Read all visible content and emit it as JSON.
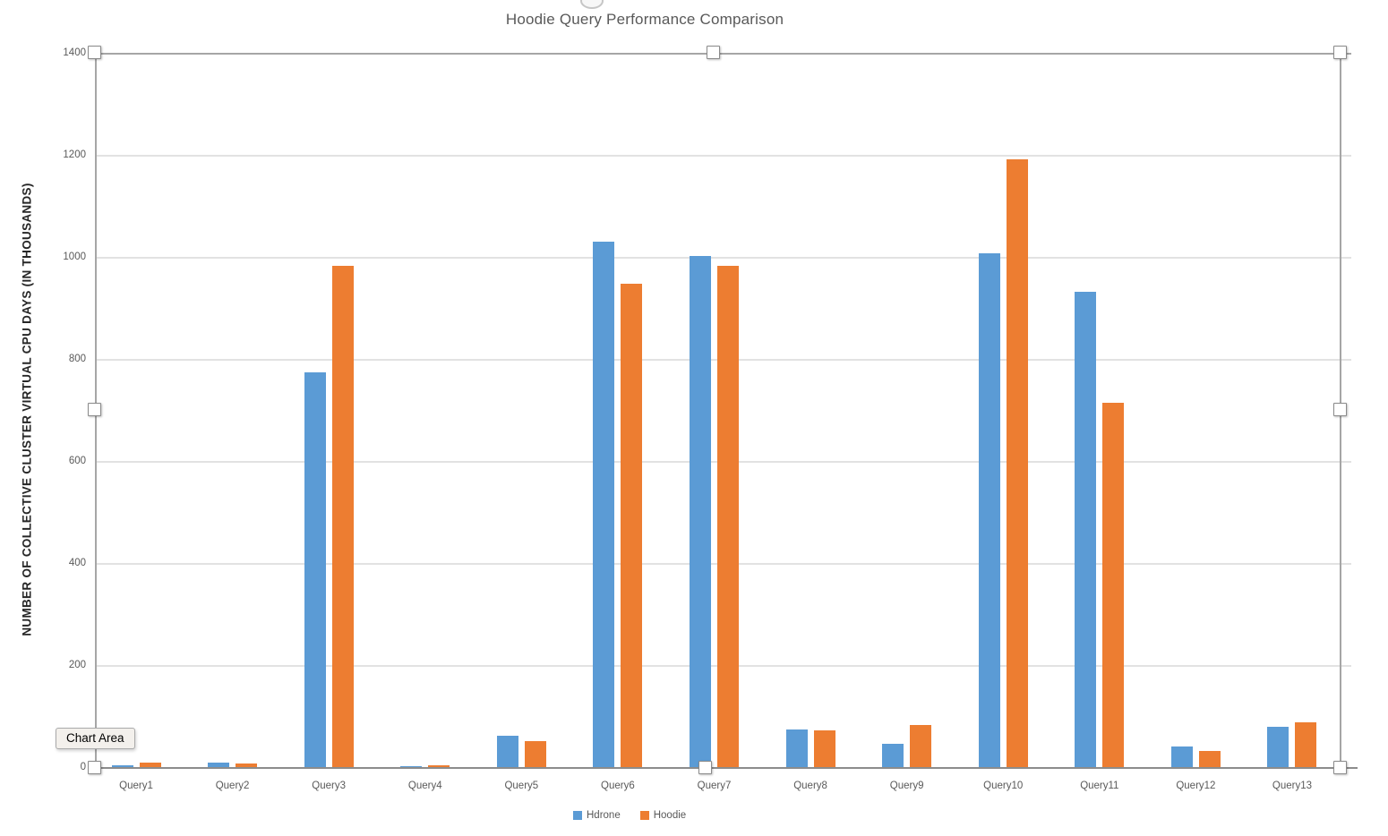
{
  "chart_data": {
    "type": "bar",
    "title": "Hoodie Query Performance Comparison",
    "ylabel": "NUMBER OF COLLECTIVE CLUSTER VIRTUAL CPU DAYS (IN THOUSANDS)",
    "xlabel": "",
    "categories": [
      "Query1",
      "Query2",
      "Query3",
      "Query4",
      "Query5",
      "Query6",
      "Query7",
      "Query8",
      "Query9",
      "Query10",
      "Query11",
      "Query12",
      "Query13"
    ],
    "series": [
      {
        "name": "Hdrone",
        "color": "#5B9BD5",
        "values": [
          5,
          10,
          775,
          4,
          64,
          1031,
          1004,
          75,
          48,
          1008,
          934,
          42,
          81
        ]
      },
      {
        "name": "Hoodie",
        "color": "#ED7D31",
        "values": [
          10,
          9,
          985,
          5,
          52,
          949,
          984,
          74,
          84,
          1193,
          716,
          33,
          90
        ]
      }
    ],
    "ylim": [
      0,
      1400
    ],
    "ytick_step": 200,
    "grid": "horizontal",
    "legend_position": "bottom"
  },
  "selection": {
    "tooltip": "Chart Area"
  },
  "colors": {
    "hdrone": "#5B9BD5",
    "hoodie": "#ED7D31",
    "gridline": "#E2E2E2",
    "axis_line": "#8C8C8C",
    "selection_border": "#A6A6A6",
    "label_text": "#595959",
    "tooltip_bg": "#F3F0EC"
  }
}
